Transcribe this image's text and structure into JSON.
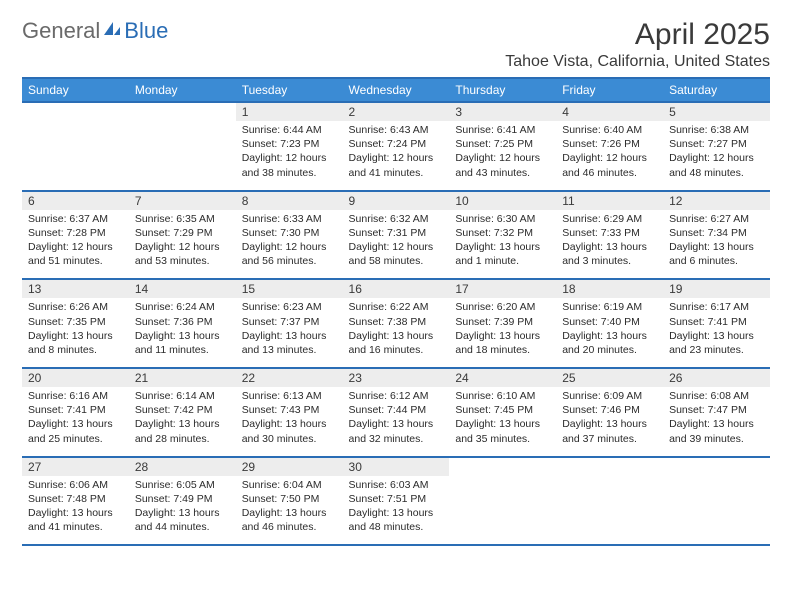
{
  "logo": {
    "part1": "General",
    "part2": "Blue"
  },
  "title": "April 2025",
  "location": "Tahoe Vista, California, United States",
  "colors": {
    "header_bg": "#3b8bd4",
    "header_border": "#2a6db5",
    "daynum_bg": "#ededed",
    "text": "#2b2b2b"
  },
  "dow": [
    "Sunday",
    "Monday",
    "Tuesday",
    "Wednesday",
    "Thursday",
    "Friday",
    "Saturday"
  ],
  "weeks": [
    [
      null,
      null,
      {
        "n": "1",
        "sr": "6:44 AM",
        "ss": "7:23 PM",
        "dl": "12 hours and 38 minutes."
      },
      {
        "n": "2",
        "sr": "6:43 AM",
        "ss": "7:24 PM",
        "dl": "12 hours and 41 minutes."
      },
      {
        "n": "3",
        "sr": "6:41 AM",
        "ss": "7:25 PM",
        "dl": "12 hours and 43 minutes."
      },
      {
        "n": "4",
        "sr": "6:40 AM",
        "ss": "7:26 PM",
        "dl": "12 hours and 46 minutes."
      },
      {
        "n": "5",
        "sr": "6:38 AM",
        "ss": "7:27 PM",
        "dl": "12 hours and 48 minutes."
      }
    ],
    [
      {
        "n": "6",
        "sr": "6:37 AM",
        "ss": "7:28 PM",
        "dl": "12 hours and 51 minutes."
      },
      {
        "n": "7",
        "sr": "6:35 AM",
        "ss": "7:29 PM",
        "dl": "12 hours and 53 minutes."
      },
      {
        "n": "8",
        "sr": "6:33 AM",
        "ss": "7:30 PM",
        "dl": "12 hours and 56 minutes."
      },
      {
        "n": "9",
        "sr": "6:32 AM",
        "ss": "7:31 PM",
        "dl": "12 hours and 58 minutes."
      },
      {
        "n": "10",
        "sr": "6:30 AM",
        "ss": "7:32 PM",
        "dl": "13 hours and 1 minute."
      },
      {
        "n": "11",
        "sr": "6:29 AM",
        "ss": "7:33 PM",
        "dl": "13 hours and 3 minutes."
      },
      {
        "n": "12",
        "sr": "6:27 AM",
        "ss": "7:34 PM",
        "dl": "13 hours and 6 minutes."
      }
    ],
    [
      {
        "n": "13",
        "sr": "6:26 AM",
        "ss": "7:35 PM",
        "dl": "13 hours and 8 minutes."
      },
      {
        "n": "14",
        "sr": "6:24 AM",
        "ss": "7:36 PM",
        "dl": "13 hours and 11 minutes."
      },
      {
        "n": "15",
        "sr": "6:23 AM",
        "ss": "7:37 PM",
        "dl": "13 hours and 13 minutes."
      },
      {
        "n": "16",
        "sr": "6:22 AM",
        "ss": "7:38 PM",
        "dl": "13 hours and 16 minutes."
      },
      {
        "n": "17",
        "sr": "6:20 AM",
        "ss": "7:39 PM",
        "dl": "13 hours and 18 minutes."
      },
      {
        "n": "18",
        "sr": "6:19 AM",
        "ss": "7:40 PM",
        "dl": "13 hours and 20 minutes."
      },
      {
        "n": "19",
        "sr": "6:17 AM",
        "ss": "7:41 PM",
        "dl": "13 hours and 23 minutes."
      }
    ],
    [
      {
        "n": "20",
        "sr": "6:16 AM",
        "ss": "7:41 PM",
        "dl": "13 hours and 25 minutes."
      },
      {
        "n": "21",
        "sr": "6:14 AM",
        "ss": "7:42 PM",
        "dl": "13 hours and 28 minutes."
      },
      {
        "n": "22",
        "sr": "6:13 AM",
        "ss": "7:43 PM",
        "dl": "13 hours and 30 minutes."
      },
      {
        "n": "23",
        "sr": "6:12 AM",
        "ss": "7:44 PM",
        "dl": "13 hours and 32 minutes."
      },
      {
        "n": "24",
        "sr": "6:10 AM",
        "ss": "7:45 PM",
        "dl": "13 hours and 35 minutes."
      },
      {
        "n": "25",
        "sr": "6:09 AM",
        "ss": "7:46 PM",
        "dl": "13 hours and 37 minutes."
      },
      {
        "n": "26",
        "sr": "6:08 AM",
        "ss": "7:47 PM",
        "dl": "13 hours and 39 minutes."
      }
    ],
    [
      {
        "n": "27",
        "sr": "6:06 AM",
        "ss": "7:48 PM",
        "dl": "13 hours and 41 minutes."
      },
      {
        "n": "28",
        "sr": "6:05 AM",
        "ss": "7:49 PM",
        "dl": "13 hours and 44 minutes."
      },
      {
        "n": "29",
        "sr": "6:04 AM",
        "ss": "7:50 PM",
        "dl": "13 hours and 46 minutes."
      },
      {
        "n": "30",
        "sr": "6:03 AM",
        "ss": "7:51 PM",
        "dl": "13 hours and 48 minutes."
      },
      null,
      null,
      null
    ]
  ],
  "labels": {
    "sunrise": "Sunrise:",
    "sunset": "Sunset:",
    "daylight": "Daylight:"
  }
}
